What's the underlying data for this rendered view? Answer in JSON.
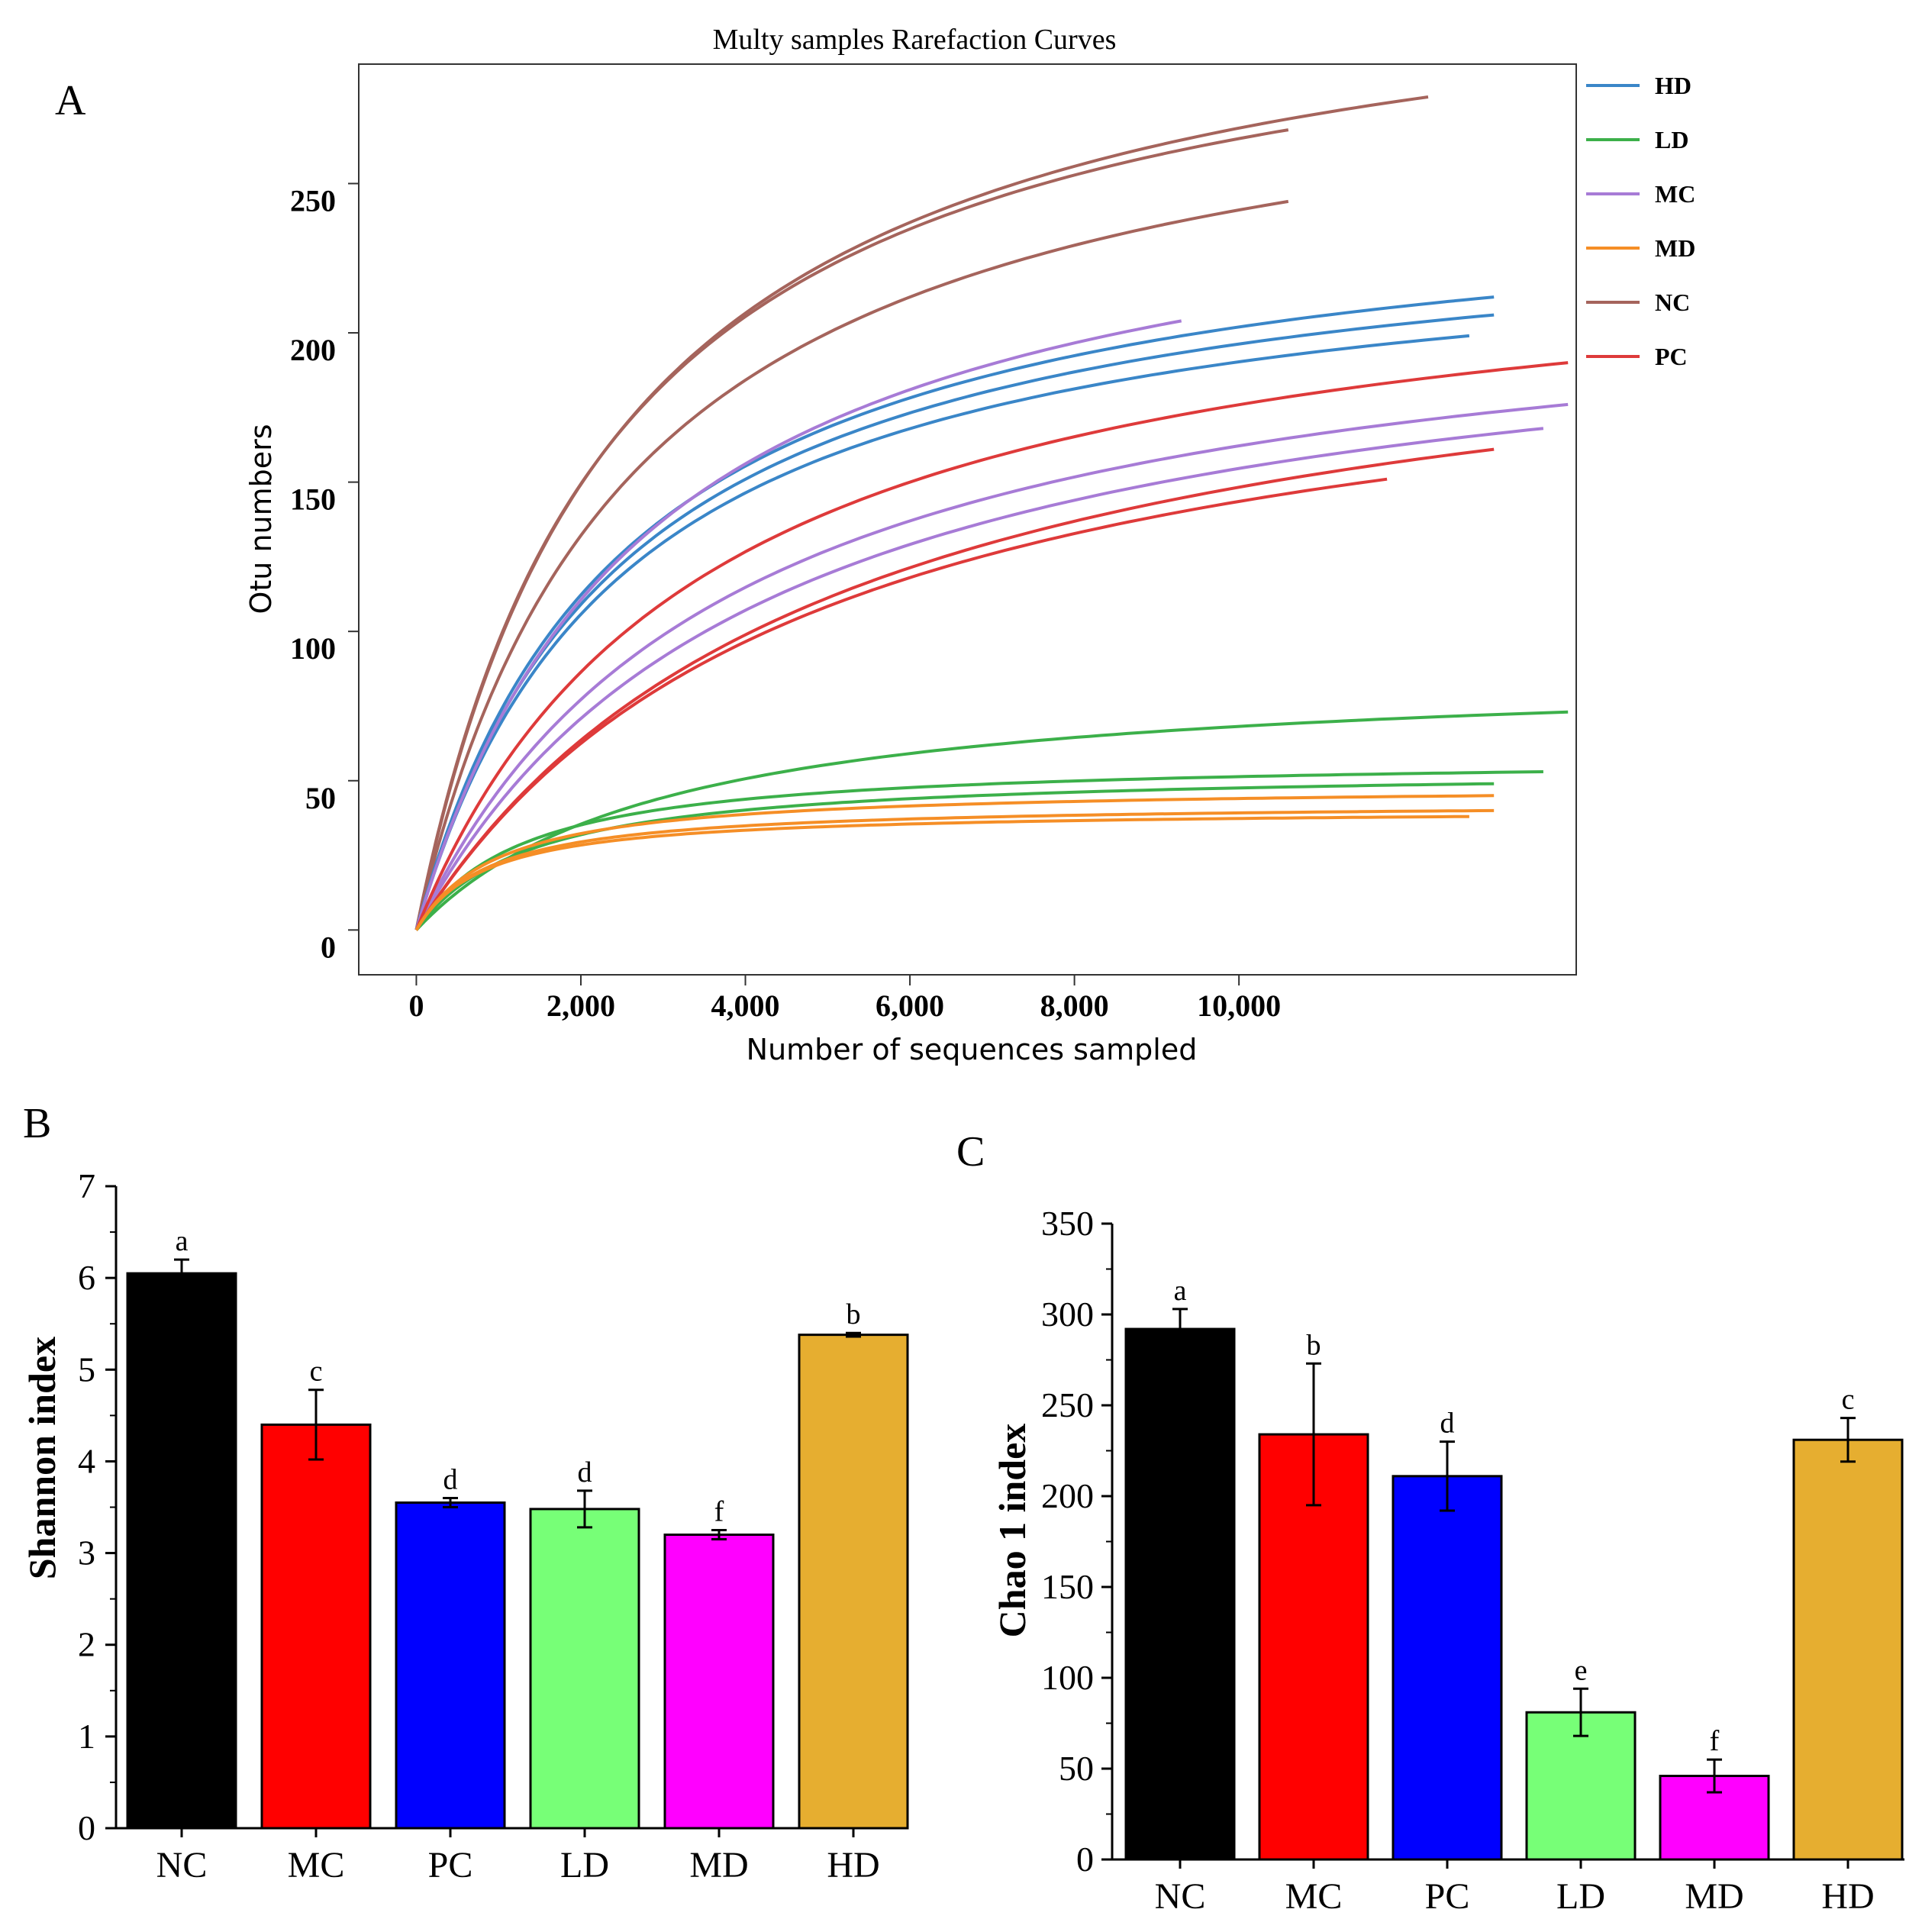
{
  "chart_data": [
    {
      "id": "A",
      "panel_label": "A",
      "type": "line",
      "title": "Multy samples Rarefaction Curves",
      "xlabel": "Number of sequences sampled",
      "ylabel": "Otu numbers",
      "xlim": [
        -700,
        14100
      ],
      "ylim": [
        -15,
        290
      ],
      "xticks": [
        0,
        2000,
        4000,
        6000,
        8000,
        10000
      ],
      "xtick_labels": [
        "0",
        "2,000",
        "4,000",
        "6,000",
        "8,000",
        "10,000"
      ],
      "yticks": [
        0,
        50,
        100,
        150,
        200,
        250
      ],
      "ytick_labels": [
        "0",
        "50",
        "100",
        "150",
        "200",
        "250"
      ],
      "legend": [
        {
          "name": "HD",
          "color": "#3a86c8"
        },
        {
          "name": "LD",
          "color": "#3cb04a"
        },
        {
          "name": "MC",
          "color": "#a77bd6"
        },
        {
          "name": "MD",
          "color": "#f58e26"
        },
        {
          "name": "NC",
          "color": "#a5645c"
        },
        {
          "name": "PC",
          "color": "#de3a3a"
        }
      ],
      "series": [
        {
          "group": "NC",
          "n": 12300,
          "s": 279,
          "k": 2500
        },
        {
          "group": "NC",
          "n": 10600,
          "s": 268,
          "k": 2400
        },
        {
          "group": "NC",
          "n": 10600,
          "s": 244,
          "k": 2600
        },
        {
          "group": "HD",
          "n": 13100,
          "s": 212,
          "k": 2500
        },
        {
          "group": "HD",
          "n": 13100,
          "s": 206,
          "k": 2500
        },
        {
          "group": "HD",
          "n": 12800,
          "s": 199,
          "k": 2500
        },
        {
          "group": "MC",
          "n": 9300,
          "s": 204,
          "k": 2800
        },
        {
          "group": "MC",
          "n": 14000,
          "s": 176,
          "k": 3800
        },
        {
          "group": "MC",
          "n": 13700,
          "s": 168,
          "k": 4200
        },
        {
          "group": "PC",
          "n": 14000,
          "s": 190,
          "k": 3500
        },
        {
          "group": "PC",
          "n": 13100,
          "s": 161,
          "k": 5000
        },
        {
          "group": "PC",
          "n": 11800,
          "s": 151,
          "k": 4800
        },
        {
          "group": "LD",
          "n": 14000,
          "s": 73,
          "k": 3000
        },
        {
          "group": "LD",
          "n": 13700,
          "s": 53,
          "k": 1300
        },
        {
          "group": "LD",
          "n": 13100,
          "s": 49,
          "k": 1400
        },
        {
          "group": "MD",
          "n": 13100,
          "s": 45,
          "k": 1000
        },
        {
          "group": "MD",
          "n": 13100,
          "s": 40,
          "k": 900
        },
        {
          "group": "MD",
          "n": 12800,
          "s": 38,
          "k": 850
        }
      ]
    },
    {
      "id": "B",
      "panel_label": "B",
      "type": "bar",
      "ylabel": "Shannon index",
      "categories": [
        "NC",
        "MC",
        "PC",
        "LD",
        "MD",
        "HD"
      ],
      "values": [
        6.05,
        4.4,
        3.55,
        3.48,
        3.2,
        5.38
      ],
      "errors": [
        0.15,
        0.38,
        0.05,
        0.2,
        0.05,
        0.02
      ],
      "letters": [
        "a",
        "c",
        "d",
        "d",
        "f",
        "b"
      ],
      "colors": [
        "#000000",
        "#ff0000",
        "#0000ff",
        "#77ff77",
        "#ff00ff",
        "#e6ae30"
      ],
      "ylim": [
        0,
        7
      ],
      "yticks": [
        0,
        1,
        2,
        3,
        4,
        5,
        6,
        7
      ],
      "ytick_labels": [
        "0",
        "1",
        "2",
        "3",
        "4",
        "5",
        "6",
        "7"
      ]
    },
    {
      "id": "C",
      "panel_label": "C",
      "type": "bar",
      "ylabel": "Chao 1 index",
      "categories": [
        "NC",
        "MC",
        "PC",
        "LD",
        "MD",
        "HD"
      ],
      "values": [
        292,
        234,
        211,
        81,
        46,
        231
      ],
      "errors": [
        11,
        39,
        19,
        13,
        9,
        12
      ],
      "letters": [
        "a",
        "b",
        "d",
        "e",
        "f",
        "c"
      ],
      "colors": [
        "#000000",
        "#ff0000",
        "#0000ff",
        "#77ff77",
        "#ff00ff",
        "#e6ae30"
      ],
      "ylim": [
        0,
        350
      ],
      "yticks": [
        0,
        50,
        100,
        150,
        200,
        250,
        300,
        350
      ],
      "ytick_labels": [
        "0",
        "50",
        "100",
        "150",
        "200",
        "250",
        "300",
        "350"
      ]
    }
  ]
}
